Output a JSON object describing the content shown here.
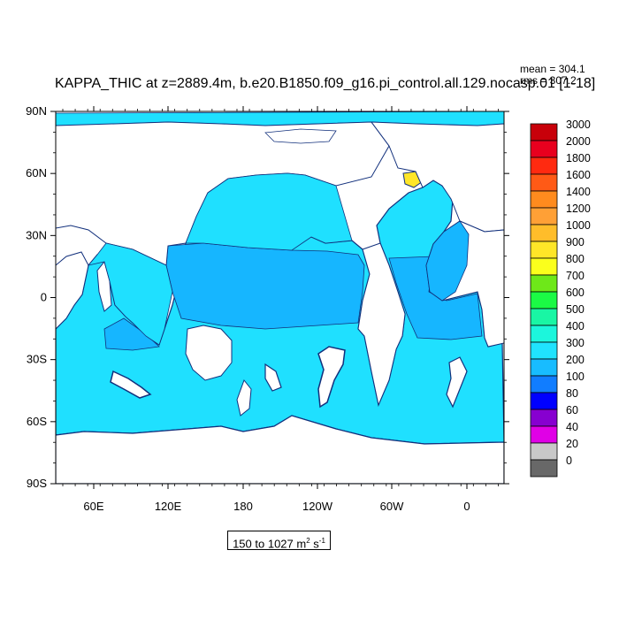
{
  "title": "KAPPA_THIC at z=2889.4m, b.e20.B1850.f09_g16.pi_control.all.129.nocasp.01 [1-18]",
  "stats": {
    "mean": "mean = 304.1",
    "rms": "rms = 307.2"
  },
  "range": {
    "text": "150 to 1027 m",
    "unit_sup1": "2",
    "unit_mid": " s",
    "unit_sup2": "-1"
  },
  "axes": {
    "y_labels": [
      "90N",
      "60N",
      "30N",
      "0",
      "30S",
      "60S",
      "90S"
    ],
    "x_labels": [
      "60E",
      "120E",
      "180",
      "120W",
      "60W",
      "0"
    ]
  },
  "colorbar": {
    "labels": [
      "3000",
      "2000",
      "1800",
      "1600",
      "1400",
      "1200",
      "1000",
      "900",
      "800",
      "700",
      "600",
      "500",
      "400",
      "300",
      "200",
      "100",
      "80",
      "60",
      "40",
      "20",
      "0"
    ],
    "colors": [
      "#c8000a",
      "#e8001e",
      "#ff2a10",
      "#ff5a16",
      "#ff8b1e",
      "#ffa036",
      "#ffbd2a",
      "#ffe628",
      "#fbff1c",
      "#6ee819",
      "#1bfa45",
      "#19f6a4",
      "#1cf6dc",
      "#20e3fe",
      "#18bcff",
      "#117dff",
      "#0000ff",
      "#8700d0",
      "#e000e6",
      "#c8c8c8",
      "#686868"
    ]
  },
  "fill_colors": {
    "ocean": "#1fe0ff",
    "band": "#16b6ff",
    "land": "#ffffff",
    "coast": "#12307c"
  }
}
